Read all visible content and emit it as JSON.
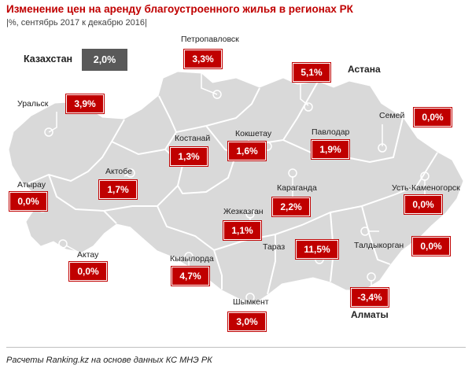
{
  "header": {
    "title": "Изменение цен на аренду благоустроенного жилья в регионах РК",
    "subtitle": "|%, сентябрь 2017 к декабрю 2016|"
  },
  "country": {
    "name": "Казахстан",
    "value": "2,0%"
  },
  "regions": [
    {
      "id": "petropavlovsk",
      "name": "Петропавловск",
      "value": "3,3%"
    },
    {
      "id": "astana",
      "name": "Астана",
      "value": "5,1%"
    },
    {
      "id": "uralsk",
      "name": "Уральск",
      "value": "3,9%"
    },
    {
      "id": "semey",
      "name": "Семей",
      "value": "0,0%"
    },
    {
      "id": "kostanay",
      "name": "Костанай",
      "value": "1,3%"
    },
    {
      "id": "kokshetau",
      "name": "Кокшетау",
      "value": "1,6%"
    },
    {
      "id": "pavlodar",
      "name": "Павлодар",
      "value": "1,9%"
    },
    {
      "id": "aktobe",
      "name": "Актобе",
      "value": "1,7%"
    },
    {
      "id": "atyrau",
      "name": "Атырау",
      "value": "0,0%"
    },
    {
      "id": "karaganda",
      "name": "Караганда",
      "value": "2,2%"
    },
    {
      "id": "ust-kamenogorsk",
      "name": "Усть-Каменогорск",
      "value": "0,0%"
    },
    {
      "id": "zhezkazgan",
      "name": "Жезказган",
      "value": "1,1%"
    },
    {
      "id": "aktau",
      "name": "Актау",
      "value": "0,0%"
    },
    {
      "id": "kyzylorda",
      "name": "Кызылорда",
      "value": "4,7%"
    },
    {
      "id": "taraz",
      "name": "Тараз",
      "value": "11,5%"
    },
    {
      "id": "taldykorgan",
      "name": "Талдыкорган",
      "value": "0,0%"
    },
    {
      "id": "almaty",
      "name": "Алматы",
      "value": "-3,4%"
    },
    {
      "id": "shymkent",
      "name": "Шымкент",
      "value": "3,0%"
    }
  ],
  "footer": {
    "source": "Расчеты Ranking.kz на основе данных КС МНЭ РК"
  },
  "colors": {
    "value_box": "#c00000",
    "country_box": "#595959",
    "map_fill": "#d9d9d9",
    "border": "#ffffff"
  }
}
